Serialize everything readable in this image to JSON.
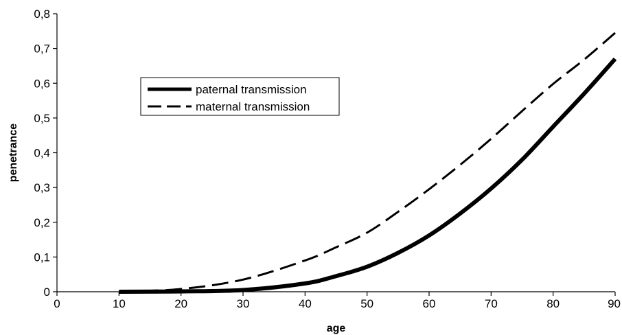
{
  "chart_data": {
    "type": "line",
    "title": "",
    "xlabel": "age",
    "ylabel": "penetrance",
    "xlim": [
      0,
      90
    ],
    "ylim": [
      0,
      0.8
    ],
    "grid": false,
    "legend_position": "upper-left",
    "x_ticks": [
      {
        "value": 0,
        "label": "0"
      },
      {
        "value": 10,
        "label": "10"
      },
      {
        "value": 20,
        "label": "20"
      },
      {
        "value": 30,
        "label": "30"
      },
      {
        "value": 40,
        "label": "40"
      },
      {
        "value": 50,
        "label": "50"
      },
      {
        "value": 60,
        "label": "60"
      },
      {
        "value": 70,
        "label": "70"
      },
      {
        "value": 80,
        "label": "80"
      },
      {
        "value": 90,
        "label": "90"
      }
    ],
    "y_ticks": [
      {
        "value": 0,
        "label": "0"
      },
      {
        "value": 0.1,
        "label": "0,1"
      },
      {
        "value": 0.2,
        "label": "0,2"
      },
      {
        "value": 0.3,
        "label": "0,3"
      },
      {
        "value": 0.4,
        "label": "0,4"
      },
      {
        "value": 0.5,
        "label": "0,5"
      },
      {
        "value": 0.6,
        "label": "0,6"
      },
      {
        "value": 0.7,
        "label": "0,7"
      },
      {
        "value": 0.8,
        "label": "0,8"
      }
    ],
    "x": [
      10,
      20,
      30,
      40,
      45,
      50,
      55,
      60,
      65,
      70,
      75,
      80,
      85,
      90
    ],
    "series": [
      {
        "name": "paternal transmission",
        "style": "solid",
        "color": "#000000",
        "values": [
          0.0,
          0.001,
          0.005,
          0.024,
          0.045,
          0.072,
          0.112,
          0.162,
          0.225,
          0.297,
          0.38,
          0.475,
          0.57,
          0.67
        ]
      },
      {
        "name": "maternal transmission",
        "style": "dashed",
        "color": "#000000",
        "values": [
          0.0,
          0.008,
          0.035,
          0.09,
          0.128,
          0.17,
          0.23,
          0.295,
          0.365,
          0.44,
          0.52,
          0.598,
          0.668,
          0.745
        ]
      }
    ]
  }
}
